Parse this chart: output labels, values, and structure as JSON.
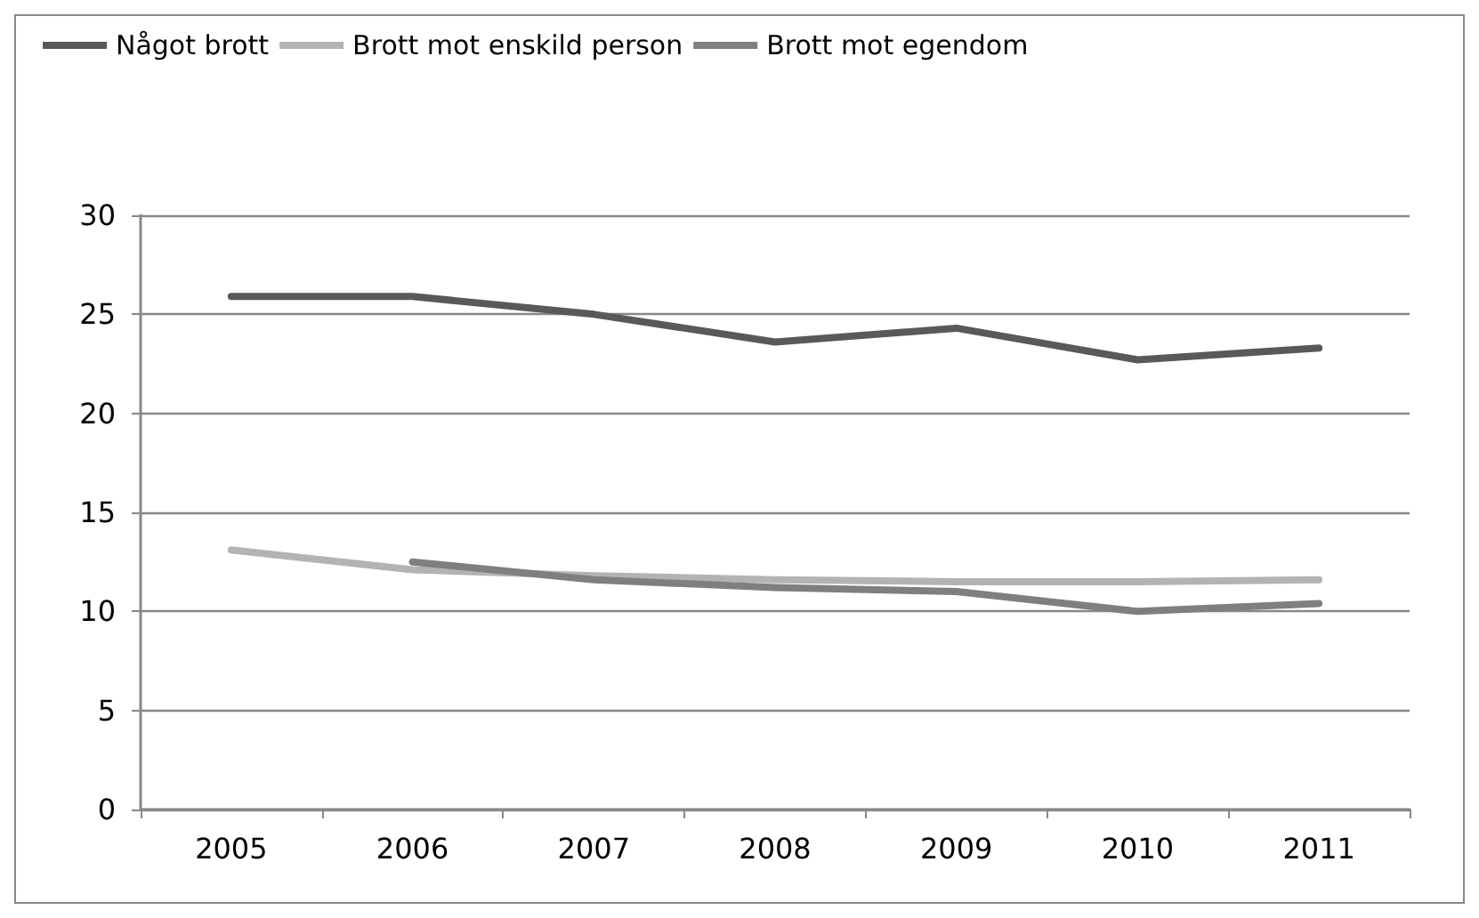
{
  "chart_data": {
    "type": "line",
    "categories": [
      "2005",
      "2006",
      "2007",
      "2008",
      "2009",
      "2010",
      "2011"
    ],
    "series": [
      {
        "name": "Något brott",
        "color": "#595959",
        "values": [
          25.9,
          25.9,
          25.0,
          23.6,
          24.3,
          22.7,
          23.3
        ]
      },
      {
        "name": "Brott mot enskild person",
        "color": "#b3b3b3",
        "values": [
          13.1,
          12.1,
          11.8,
          11.6,
          11.5,
          11.5,
          11.6
        ]
      },
      {
        "name": "Brott mot egendom",
        "color": "#7f7f7f",
        "values": [
          null,
          12.5,
          11.6,
          11.2,
          11.0,
          10.0,
          10.4
        ]
      }
    ],
    "ylim": [
      0,
      30
    ],
    "yticks": [
      0,
      5,
      10,
      15,
      20,
      25,
      30
    ],
    "grid": "y",
    "legend": "top left",
    "marker": "none",
    "line_style": "solid"
  }
}
